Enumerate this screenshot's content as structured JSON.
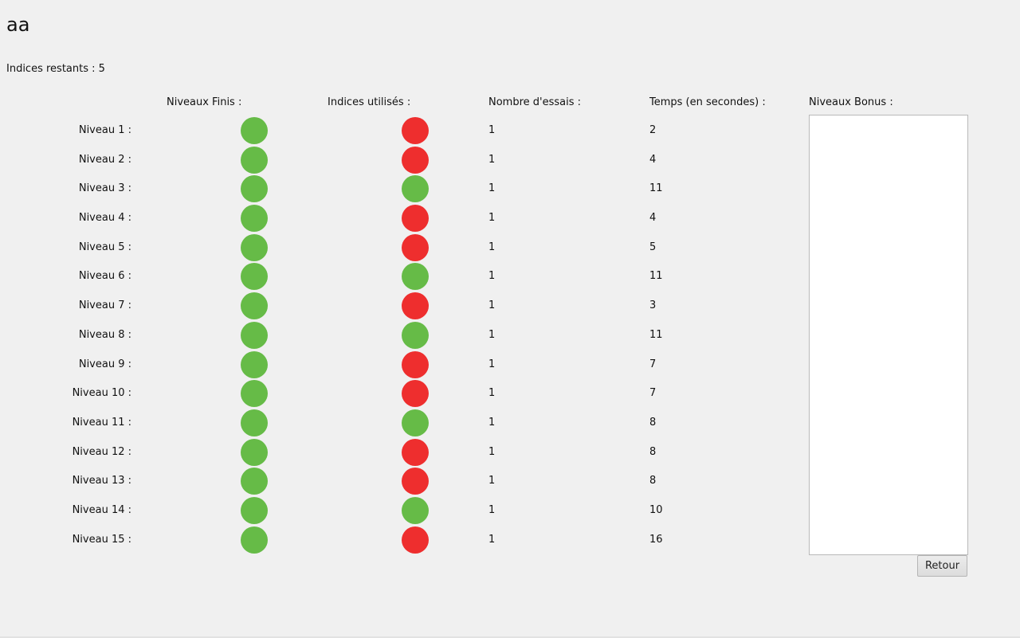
{
  "player_name": "aa",
  "hints_remaining": "Indices restants : 5",
  "headers": {
    "finished": "Niveaux Finis :",
    "hints_used": "Indices utilisés :",
    "attempts": "Nombre d'essais :",
    "time": "Temps (en secondes) :",
    "bonus": "Niveaux Bonus :"
  },
  "colors": {
    "green": "#66bb47",
    "red": "#ee2e2e"
  },
  "levels": [
    {
      "label": "Niveau 1 :",
      "finished": "green",
      "hint_used": "red",
      "attempts": "1",
      "time": "2"
    },
    {
      "label": "Niveau 2 :",
      "finished": "green",
      "hint_used": "red",
      "attempts": "1",
      "time": "4"
    },
    {
      "label": "Niveau 3 :",
      "finished": "green",
      "hint_used": "green",
      "attempts": "1",
      "time": "11"
    },
    {
      "label": "Niveau 4 :",
      "finished": "green",
      "hint_used": "red",
      "attempts": "1",
      "time": "4"
    },
    {
      "label": "Niveau 5 :",
      "finished": "green",
      "hint_used": "red",
      "attempts": "1",
      "time": "5"
    },
    {
      "label": "Niveau 6 :",
      "finished": "green",
      "hint_used": "green",
      "attempts": "1",
      "time": "11"
    },
    {
      "label": "Niveau 7 :",
      "finished": "green",
      "hint_used": "red",
      "attempts": "1",
      "time": "3"
    },
    {
      "label": "Niveau 8 :",
      "finished": "green",
      "hint_used": "green",
      "attempts": "1",
      "time": "11"
    },
    {
      "label": "Niveau 9 :",
      "finished": "green",
      "hint_used": "red",
      "attempts": "1",
      "time": "7"
    },
    {
      "label": "Niveau 10 :",
      "finished": "green",
      "hint_used": "red",
      "attempts": "1",
      "time": "7"
    },
    {
      "label": "Niveau 11 :",
      "finished": "green",
      "hint_used": "green",
      "attempts": "1",
      "time": "8"
    },
    {
      "label": "Niveau 12 :",
      "finished": "green",
      "hint_used": "red",
      "attempts": "1",
      "time": "8"
    },
    {
      "label": "Niveau 13 :",
      "finished": "green",
      "hint_used": "red",
      "attempts": "1",
      "time": "8"
    },
    {
      "label": "Niveau 14 :",
      "finished": "green",
      "hint_used": "green",
      "attempts": "1",
      "time": "10"
    },
    {
      "label": "Niveau 15 :",
      "finished": "green",
      "hint_used": "red",
      "attempts": "1",
      "time": "16"
    }
  ],
  "bonus_levels": [],
  "retour_label": "Retour"
}
